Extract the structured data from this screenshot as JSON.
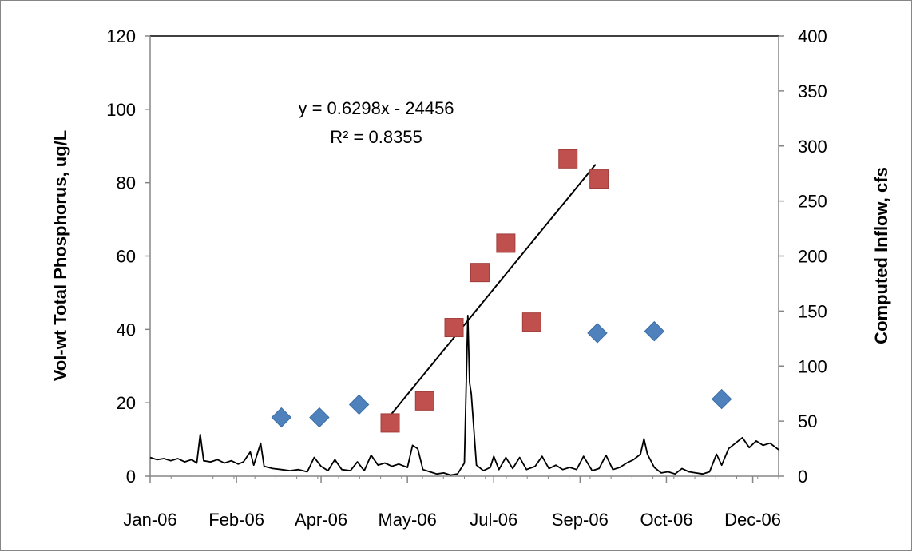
{
  "chart_data": {
    "type": "scatter",
    "x_axis": {
      "type": "date",
      "range": [
        "2006-01-01",
        "2006-12-31"
      ],
      "tick_labels": [
        {
          "date": "2006-01-01",
          "label": "Jan-06"
        },
        {
          "date": "2006-02-20",
          "label": "Feb-06"
        },
        {
          "date": "2006-04-10",
          "label": "Apr-06"
        },
        {
          "date": "2006-05-30",
          "label": "May-06"
        },
        {
          "date": "2006-07-19",
          "label": "Jul-06"
        },
        {
          "date": "2006-09-07",
          "label": "Sep-06"
        },
        {
          "date": "2006-10-27",
          "label": "Oct-06"
        },
        {
          "date": "2006-12-16",
          "label": "Dec-06"
        }
      ]
    },
    "y_left": {
      "label": "Vol-wt Total Phosphorus,  ug/L",
      "range": [
        0,
        120
      ],
      "ticks": [
        "0",
        "20",
        "40",
        "60",
        "80",
        "100",
        "120"
      ]
    },
    "y_right": {
      "label": "Computed Inflow, cfs",
      "range": [
        0,
        400
      ],
      "ticks": [
        "0",
        "50",
        "100",
        "150",
        "200",
        "250",
        "300",
        "350",
        "400"
      ]
    },
    "series": [
      {
        "marker": "diamond",
        "color": "#4f81bd",
        "axis": "left",
        "points": [
          {
            "x": "2006-03-18",
            "y": 16
          },
          {
            "x": "2006-04-09",
            "y": 16
          },
          {
            "x": "2006-05-02",
            "y": 19.5
          },
          {
            "x": "2006-09-17",
            "y": 39
          },
          {
            "x": "2006-10-20",
            "y": 39.5
          },
          {
            "x": "2006-11-28",
            "y": 21
          }
        ]
      },
      {
        "marker": "square",
        "color": "#c0504d",
        "axis": "left",
        "points": [
          {
            "x": "2006-05-20",
            "y": 14.5
          },
          {
            "x": "2006-06-09",
            "y": 20.5
          },
          {
            "x": "2006-06-26",
            "y": 40.5
          },
          {
            "x": "2006-07-11",
            "y": 55.5
          },
          {
            "x": "2006-07-26",
            "y": 63.5
          },
          {
            "x": "2006-08-10",
            "y": 42
          },
          {
            "x": "2006-08-31",
            "y": 86.5
          },
          {
            "x": "2006-09-18",
            "y": 81
          }
        ]
      },
      {
        "name": "",
        "marker": "none",
        "type": "line",
        "color": "#000000",
        "axis": "right",
        "points": [
          {
            "x": "2006-01-01",
            "y": 17
          },
          {
            "x": "2006-01-05",
            "y": 15
          },
          {
            "x": "2006-01-09",
            "y": 16
          },
          {
            "x": "2006-01-13",
            "y": 14
          },
          {
            "x": "2006-01-17",
            "y": 16
          },
          {
            "x": "2006-01-21",
            "y": 13
          },
          {
            "x": "2006-01-25",
            "y": 15
          },
          {
            "x": "2006-01-28",
            "y": 12
          },
          {
            "x": "2006-01-30",
            "y": 38
          },
          {
            "x": "2006-02-01",
            "y": 14
          },
          {
            "x": "2006-02-05",
            "y": 13
          },
          {
            "x": "2006-02-09",
            "y": 15
          },
          {
            "x": "2006-02-13",
            "y": 12
          },
          {
            "x": "2006-02-17",
            "y": 14
          },
          {
            "x": "2006-02-21",
            "y": 11
          },
          {
            "x": "2006-02-24",
            "y": 13
          },
          {
            "x": "2006-02-28",
            "y": 22
          },
          {
            "x": "2006-03-02",
            "y": 10
          },
          {
            "x": "2006-03-06",
            "y": 30
          },
          {
            "x": "2006-03-08",
            "y": 9
          },
          {
            "x": "2006-03-13",
            "y": 7
          },
          {
            "x": "2006-03-18",
            "y": 6
          },
          {
            "x": "2006-03-23",
            "y": 5
          },
          {
            "x": "2006-03-28",
            "y": 6
          },
          {
            "x": "2006-04-02",
            "y": 4
          },
          {
            "x": "2006-04-06",
            "y": 17
          },
          {
            "x": "2006-04-10",
            "y": 9
          },
          {
            "x": "2006-04-14",
            "y": 5
          },
          {
            "x": "2006-04-18",
            "y": 15
          },
          {
            "x": "2006-04-22",
            "y": 6
          },
          {
            "x": "2006-04-27",
            "y": 5
          },
          {
            "x": "2006-05-01",
            "y": 13
          },
          {
            "x": "2006-05-05",
            "y": 5
          },
          {
            "x": "2006-05-09",
            "y": 19
          },
          {
            "x": "2006-05-13",
            "y": 10
          },
          {
            "x": "2006-05-17",
            "y": 12
          },
          {
            "x": "2006-05-21",
            "y": 9
          },
          {
            "x": "2006-05-25",
            "y": 11
          },
          {
            "x": "2006-05-30",
            "y": 8
          },
          {
            "x": "2006-06-02",
            "y": 28
          },
          {
            "x": "2006-06-05",
            "y": 25
          },
          {
            "x": "2006-06-08",
            "y": 6
          },
          {
            "x": "2006-06-12",
            "y": 4
          },
          {
            "x": "2006-06-16",
            "y": 2
          },
          {
            "x": "2006-06-20",
            "y": 3
          },
          {
            "x": "2006-06-24",
            "y": 1
          },
          {
            "x": "2006-06-28",
            "y": 2
          },
          {
            "x": "2006-07-02",
            "y": 12
          },
          {
            "x": "2006-07-04",
            "y": 146
          },
          {
            "x": "2006-07-05",
            "y": 85
          },
          {
            "x": "2006-07-06",
            "y": 75
          },
          {
            "x": "2006-07-09",
            "y": 10
          },
          {
            "x": "2006-07-13",
            "y": 5
          },
          {
            "x": "2006-07-17",
            "y": 8
          },
          {
            "x": "2006-07-19",
            "y": 18
          },
          {
            "x": "2006-07-22",
            "y": 6
          },
          {
            "x": "2006-07-26",
            "y": 17
          },
          {
            "x": "2006-07-30",
            "y": 7
          },
          {
            "x": "2006-08-03",
            "y": 17
          },
          {
            "x": "2006-08-07",
            "y": 6
          },
          {
            "x": "2006-08-12",
            "y": 9
          },
          {
            "x": "2006-08-16",
            "y": 18
          },
          {
            "x": "2006-08-20",
            "y": 7
          },
          {
            "x": "2006-08-24",
            "y": 10
          },
          {
            "x": "2006-08-28",
            "y": 6
          },
          {
            "x": "2006-09-01",
            "y": 8
          },
          {
            "x": "2006-09-05",
            "y": 6
          },
          {
            "x": "2006-09-09",
            "y": 18
          },
          {
            "x": "2006-09-14",
            "y": 5
          },
          {
            "x": "2006-09-18",
            "y": 7
          },
          {
            "x": "2006-09-22",
            "y": 19
          },
          {
            "x": "2006-09-26",
            "y": 6
          },
          {
            "x": "2006-09-30",
            "y": 8
          },
          {
            "x": "2006-10-04",
            "y": 12
          },
          {
            "x": "2006-10-08",
            "y": 15
          },
          {
            "x": "2006-10-12",
            "y": 20
          },
          {
            "x": "2006-10-14",
            "y": 34
          },
          {
            "x": "2006-10-16",
            "y": 20
          },
          {
            "x": "2006-10-20",
            "y": 8
          },
          {
            "x": "2006-10-24",
            "y": 3
          },
          {
            "x": "2006-10-28",
            "y": 4
          },
          {
            "x": "2006-11-01",
            "y": 2
          },
          {
            "x": "2006-11-05",
            "y": 7
          },
          {
            "x": "2006-11-09",
            "y": 4
          },
          {
            "x": "2006-11-13",
            "y": 3
          },
          {
            "x": "2006-11-17",
            "y": 2
          },
          {
            "x": "2006-11-21",
            "y": 4
          },
          {
            "x": "2006-11-25",
            "y": 20
          },
          {
            "x": "2006-11-28",
            "y": 10
          },
          {
            "x": "2006-12-02",
            "y": 25
          },
          {
            "x": "2006-12-06",
            "y": 30
          },
          {
            "x": "2006-12-10",
            "y": 35
          },
          {
            "x": "2006-12-14",
            "y": 26
          },
          {
            "x": "2006-12-18",
            "y": 32
          },
          {
            "x": "2006-12-22",
            "y": 28
          },
          {
            "x": "2006-12-26",
            "y": 30
          },
          {
            "x": "2006-12-31",
            "y": 24
          }
        ]
      }
    ],
    "trendline": {
      "color": "#000000",
      "axis": "left",
      "from": {
        "x": "2006-05-20",
        "y": 16.5
      },
      "to": {
        "x": "2006-09-16",
        "y": 85
      }
    },
    "annotations": {
      "equation": "y = 0.6298x - 24456",
      "r_squared": "R² = 0.8355"
    },
    "grid": false,
    "legend": "none"
  }
}
